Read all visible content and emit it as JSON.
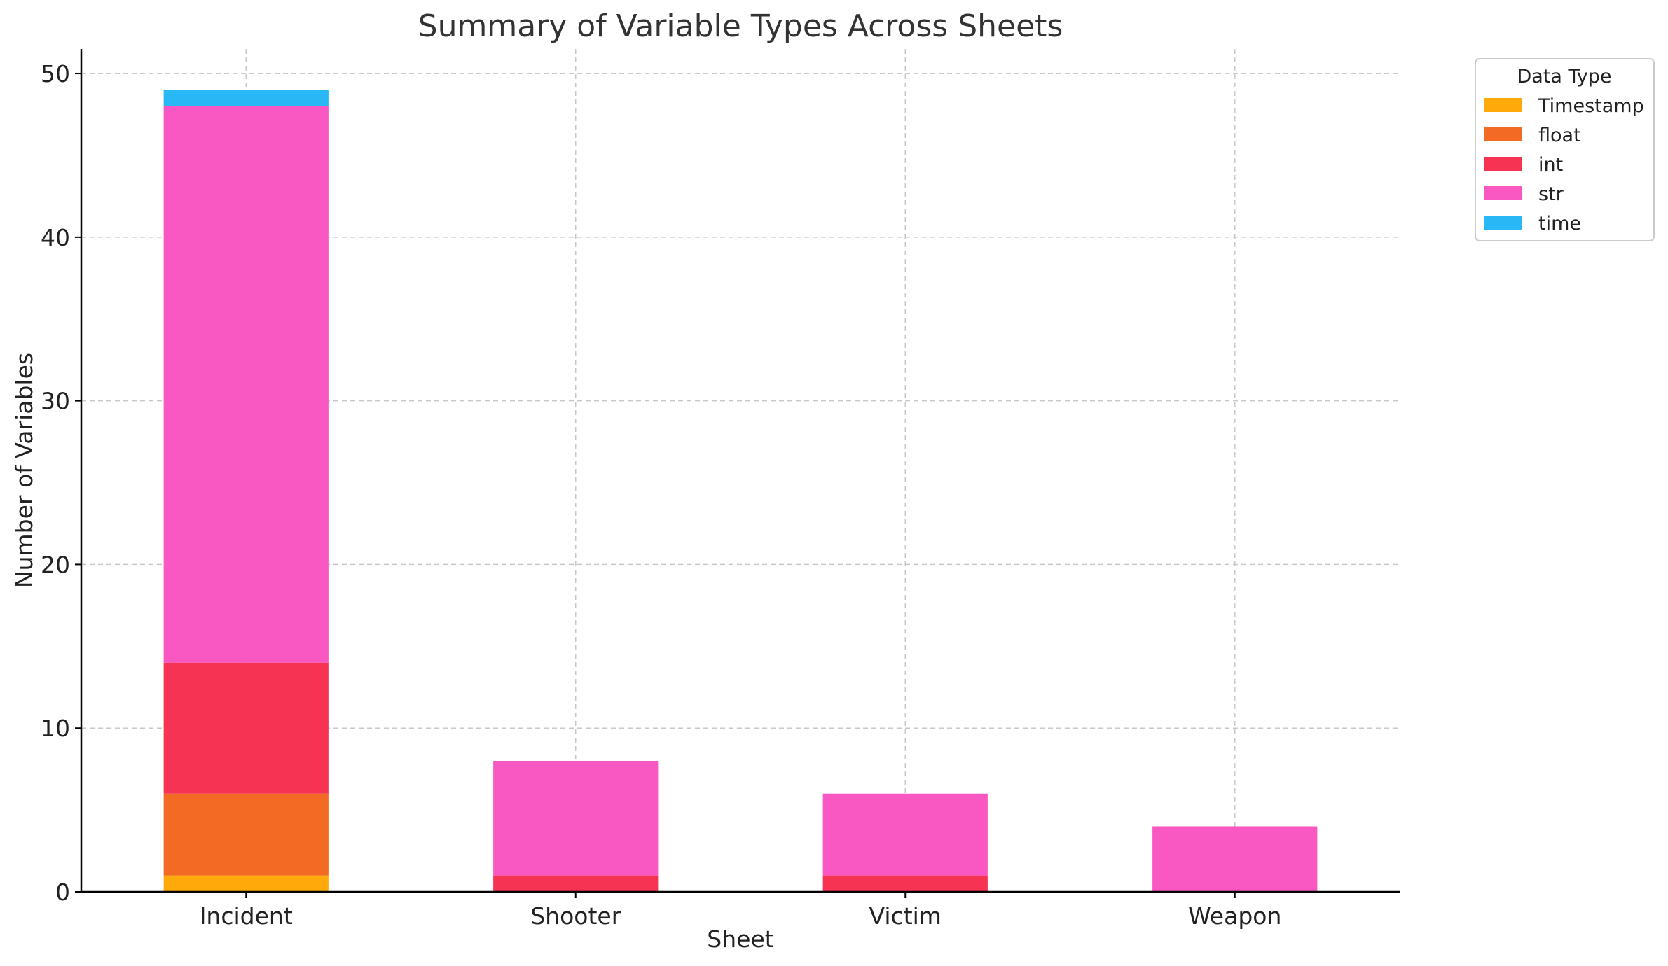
{
  "chart_data": {
    "type": "bar",
    "stacked": true,
    "title": "Summary of Variable Types Across Sheets",
    "xlabel": "Sheet",
    "ylabel": "Number of Variables",
    "categories": [
      "Incident",
      "Shooter",
      "Victim",
      "Weapon"
    ],
    "series": [
      {
        "name": "Timestamp",
        "color": "#FFAA0A",
        "values": [
          1,
          0,
          0,
          0
        ]
      },
      {
        "name": "float",
        "color": "#F26A24",
        "values": [
          5,
          0,
          0,
          0
        ]
      },
      {
        "name": "int",
        "color": "#F63353",
        "values": [
          8,
          1,
          1,
          0
        ]
      },
      {
        "name": "str",
        "color": "#F957C1",
        "values": [
          34,
          7,
          5,
          4
        ]
      },
      {
        "name": "time",
        "color": "#27B8F5",
        "values": [
          1,
          0,
          0,
          0
        ]
      }
    ],
    "ylim": [
      0,
      51.5
    ],
    "yticks": [
      0,
      10,
      20,
      30,
      40,
      50
    ],
    "grid": true,
    "legend": {
      "title": "Data Type",
      "placement": "outside-top-right"
    }
  }
}
